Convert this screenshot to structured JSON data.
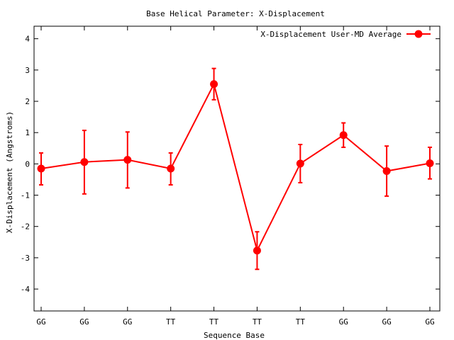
{
  "chart_data": {
    "type": "line",
    "title": "Base  Helical Parameter: X-Displacement",
    "xlabel": "Sequence Base",
    "ylabel": "X-Displacement (Angstroms)",
    "categories": [
      "GG",
      "GG",
      "GG",
      "TT",
      "TT",
      "TT",
      "TT",
      "GG",
      "GG",
      "GG"
    ],
    "ylim": [
      -4.7,
      4.4
    ],
    "yticks": [
      -4,
      -3,
      -2,
      -1,
      0,
      1,
      2,
      3,
      4
    ],
    "ytick_labels": [
      "-4",
      "-3",
      "-2",
      "-1",
      "0",
      "1",
      "2",
      "3",
      "4"
    ],
    "legend_position": "top-right",
    "grid": false,
    "color": "#ff0000",
    "series": [
      {
        "name": "X-Displacement User-MD Average",
        "values": [
          -0.15,
          0.06,
          0.13,
          -0.15,
          2.55,
          -2.77,
          0.01,
          0.92,
          -0.23,
          0.02
        ],
        "error_low": [
          -0.67,
          -0.96,
          -0.77,
          -0.67,
          2.05,
          -3.37,
          -0.6,
          0.53,
          -1.03,
          -0.48
        ],
        "error_high": [
          0.35,
          1.07,
          1.02,
          0.35,
          3.05,
          -2.17,
          0.62,
          1.31,
          0.57,
          0.53
        ]
      }
    ]
  }
}
